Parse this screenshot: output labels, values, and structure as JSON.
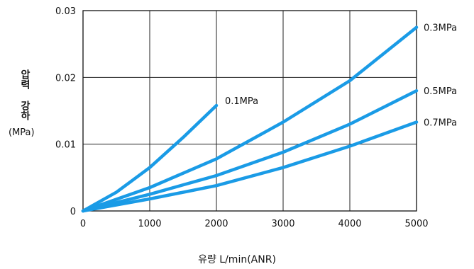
{
  "chart_data": {
    "type": "line",
    "title": "",
    "xlabel": "유량 L/min(ANR)",
    "ylabel": "압력 강하",
    "ylabel_unit": "(MPa)",
    "xlim": [
      0,
      5000
    ],
    "ylim": [
      0,
      0.03
    ],
    "x_ticks": [
      "0",
      "1000",
      "2000",
      "3000",
      "4000",
      "5000"
    ],
    "y_ticks": [
      "0",
      "0.01",
      "0.02",
      "0.03"
    ],
    "grid": true,
    "line_color": "#1a9be6",
    "series": [
      {
        "name": "0.1MPa",
        "x": [
          0,
          500,
          1000,
          1500,
          2000
        ],
        "y": [
          0,
          0.0028,
          0.0065,
          0.011,
          0.0158
        ]
      },
      {
        "name": "0.3MPa",
        "x": [
          0,
          1000,
          2000,
          3000,
          4000,
          5000
        ],
        "y": [
          0,
          0.0035,
          0.0078,
          0.0133,
          0.0195,
          0.0275
        ]
      },
      {
        "name": "0.5MPa",
        "x": [
          0,
          1000,
          2000,
          3000,
          4000,
          5000
        ],
        "y": [
          0,
          0.0025,
          0.0053,
          0.0088,
          0.013,
          0.018
        ]
      },
      {
        "name": "0.7MPa",
        "x": [
          0,
          1000,
          2000,
          3000,
          4000,
          5000
        ],
        "y": [
          0,
          0.0018,
          0.0038,
          0.0065,
          0.0097,
          0.0133
        ]
      }
    ]
  }
}
